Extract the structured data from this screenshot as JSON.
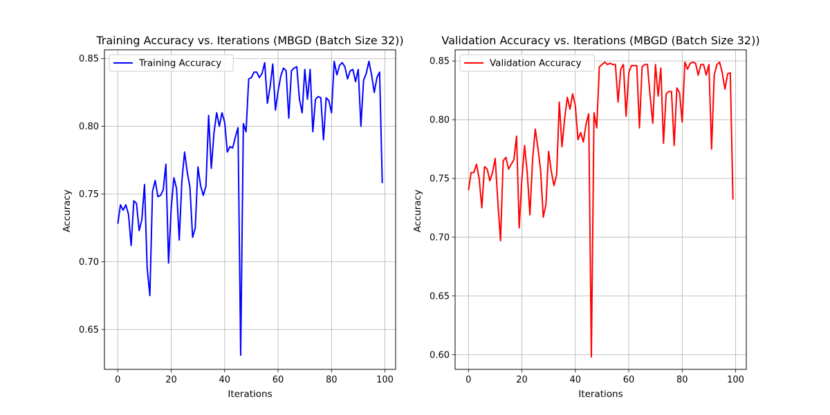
{
  "chart_data": [
    {
      "type": "line",
      "title": "Training Accuracy vs. Iterations (MBGD (Batch Size 32))",
      "xlabel": "Iterations",
      "ylabel": "Accuracy",
      "xlim": [
        -5,
        104
      ],
      "ylim": [
        0.6205,
        0.8565
      ],
      "xticks": [
        0,
        20,
        40,
        60,
        80,
        100
      ],
      "yticks": [
        0.65,
        0.7,
        0.75,
        0.8,
        0.85
      ],
      "xtick_labels": [
        "0",
        "20",
        "40",
        "60",
        "80",
        "100"
      ],
      "ytick_labels": [
        "0.65",
        "0.70",
        "0.75",
        "0.80",
        "0.85"
      ],
      "grid": true,
      "legend_position": "upper-left",
      "series": [
        {
          "name": "Training Accuracy",
          "color": "#0000ff",
          "x": [
            0,
            1,
            2,
            3,
            4,
            5,
            6,
            7,
            8,
            9,
            10,
            11,
            12,
            13,
            14,
            15,
            16,
            17,
            18,
            19,
            20,
            21,
            22,
            23,
            24,
            25,
            26,
            27,
            28,
            29,
            30,
            31,
            32,
            33,
            34,
            35,
            36,
            37,
            38,
            39,
            40,
            41,
            42,
            43,
            44,
            45,
            46,
            47,
            48,
            49,
            50,
            51,
            52,
            53,
            54,
            55,
            56,
            57,
            58,
            59,
            60,
            61,
            62,
            63,
            64,
            65,
            66,
            67,
            68,
            69,
            70,
            71,
            72,
            73,
            74,
            75,
            76,
            77,
            78,
            79,
            80,
            81,
            82,
            83,
            84,
            85,
            86,
            87,
            88,
            89,
            90,
            91,
            92,
            93,
            94,
            95,
            96,
            97,
            98,
            99
          ],
          "values": [
            0.728,
            0.742,
            0.738,
            0.742,
            0.735,
            0.712,
            0.745,
            0.743,
            0.723,
            0.731,
            0.757,
            0.695,
            0.675,
            0.752,
            0.76,
            0.748,
            0.749,
            0.753,
            0.772,
            0.699,
            0.74,
            0.762,
            0.754,
            0.716,
            0.76,
            0.781,
            0.766,
            0.755,
            0.718,
            0.725,
            0.77,
            0.756,
            0.749,
            0.756,
            0.808,
            0.769,
            0.795,
            0.81,
            0.8,
            0.81,
            0.803,
            0.781,
            0.785,
            0.784,
            0.792,
            0.799,
            0.631,
            0.802,
            0.796,
            0.835,
            0.836,
            0.84,
            0.84,
            0.836,
            0.839,
            0.847,
            0.817,
            0.829,
            0.846,
            0.812,
            0.826,
            0.837,
            0.843,
            0.841,
            0.806,
            0.841,
            0.843,
            0.844,
            0.82,
            0.81,
            0.842,
            0.82,
            0.842,
            0.796,
            0.82,
            0.822,
            0.821,
            0.79,
            0.821,
            0.819,
            0.81,
            0.848,
            0.838,
            0.845,
            0.847,
            0.844,
            0.835,
            0.841,
            0.842,
            0.833,
            0.842,
            0.8,
            0.834,
            0.839,
            0.848,
            0.838,
            0.825,
            0.836,
            0.84,
            0.758
          ]
        }
      ]
    },
    {
      "type": "line",
      "title": "Validation Accuracy vs. Iterations (MBGD (Batch Size 32))",
      "xlabel": "Iterations",
      "ylabel": "Accuracy",
      "xlim": [
        -5,
        104
      ],
      "ylim": [
        0.5875,
        0.8595
      ],
      "xticks": [
        0,
        20,
        40,
        60,
        80,
        100
      ],
      "yticks": [
        0.6,
        0.65,
        0.7,
        0.75,
        0.8,
        0.85
      ],
      "xtick_labels": [
        "0",
        "20",
        "40",
        "60",
        "80",
        "100"
      ],
      "ytick_labels": [
        "0.60",
        "0.65",
        "0.70",
        "0.75",
        "0.80",
        "0.85"
      ],
      "grid": true,
      "legend_position": "upper-left",
      "series": [
        {
          "name": "Validation Accuracy",
          "color": "#ff0000",
          "x": [
            0,
            1,
            2,
            3,
            4,
            5,
            6,
            7,
            8,
            9,
            10,
            11,
            12,
            13,
            14,
            15,
            16,
            17,
            18,
            19,
            20,
            21,
            22,
            23,
            24,
            25,
            26,
            27,
            28,
            29,
            30,
            31,
            32,
            33,
            34,
            35,
            36,
            37,
            38,
            39,
            40,
            41,
            42,
            43,
            44,
            45,
            46,
            47,
            48,
            49,
            50,
            51,
            52,
            53,
            54,
            55,
            56,
            57,
            58,
            59,
            60,
            61,
            62,
            63,
            64,
            65,
            66,
            67,
            68,
            69,
            70,
            71,
            72,
            73,
            74,
            75,
            76,
            77,
            78,
            79,
            80,
            81,
            82,
            83,
            84,
            85,
            86,
            87,
            88,
            89,
            90,
            91,
            92,
            93,
            94,
            95,
            96,
            97,
            98,
            99
          ],
          "values": [
            0.74,
            0.755,
            0.755,
            0.762,
            0.75,
            0.725,
            0.76,
            0.758,
            0.748,
            0.755,
            0.767,
            0.73,
            0.697,
            0.765,
            0.768,
            0.758,
            0.762,
            0.766,
            0.786,
            0.708,
            0.75,
            0.778,
            0.755,
            0.719,
            0.766,
            0.792,
            0.776,
            0.757,
            0.717,
            0.728,
            0.773,
            0.756,
            0.744,
            0.753,
            0.815,
            0.777,
            0.801,
            0.819,
            0.809,
            0.822,
            0.812,
            0.783,
            0.789,
            0.781,
            0.796,
            0.805,
            0.598,
            0.806,
            0.793,
            0.845,
            0.847,
            0.849,
            0.847,
            0.848,
            0.847,
            0.847,
            0.815,
            0.843,
            0.847,
            0.803,
            0.84,
            0.846,
            0.846,
            0.846,
            0.793,
            0.845,
            0.847,
            0.847,
            0.82,
            0.797,
            0.847,
            0.82,
            0.844,
            0.78,
            0.822,
            0.824,
            0.824,
            0.778,
            0.827,
            0.823,
            0.798,
            0.849,
            0.843,
            0.848,
            0.849,
            0.848,
            0.838,
            0.847,
            0.847,
            0.838,
            0.847,
            0.775,
            0.838,
            0.847,
            0.849,
            0.84,
            0.826,
            0.839,
            0.84,
            0.732
          ]
        }
      ]
    }
  ]
}
